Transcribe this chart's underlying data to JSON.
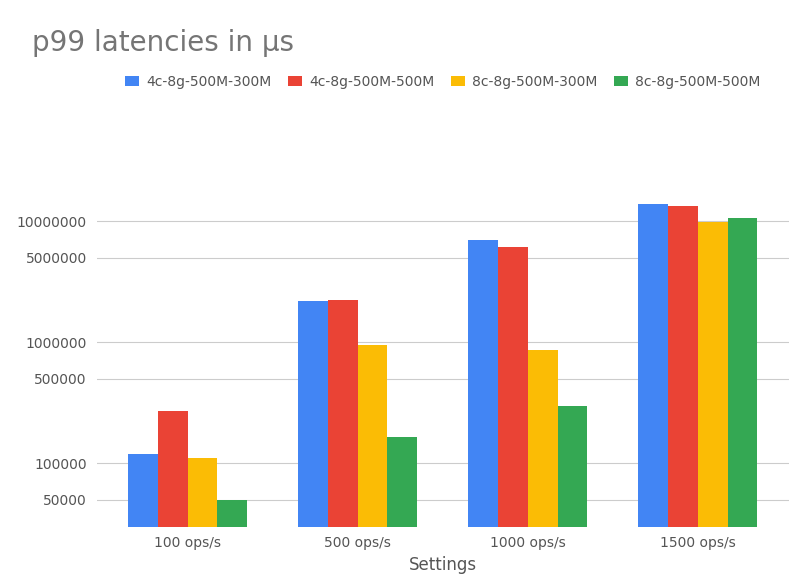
{
  "title": "p99 latencies in μs",
  "xlabel": "Settings",
  "ylabel": "",
  "categories": [
    "100 ops/s",
    "500 ops/s",
    "1000 ops/s",
    "1500 ops/s"
  ],
  "series": [
    {
      "label": "4c-8g-500M-300M",
      "color": "#4285F4",
      "values": [
        120000,
        2200000,
        7000000,
        14000000
      ]
    },
    {
      "label": "4c-8g-500M-500M",
      "color": "#EA4335",
      "values": [
        270000,
        2250000,
        6200000,
        13500000
      ]
    },
    {
      "label": "8c-8g-500M-300M",
      "color": "#FBBC05",
      "values": [
        110000,
        950000,
        860000,
        9900000
      ]
    },
    {
      "label": "8c-8g-500M-500M",
      "color": "#34A853",
      "values": [
        50000,
        165000,
        300000,
        10700000
      ]
    }
  ],
  "background_color": "#ffffff",
  "grid_color": "#cccccc",
  "title_color": "#757575",
  "label_color": "#555555",
  "tick_color": "#555555",
  "yticks": [
    50000,
    100000,
    500000,
    1000000,
    5000000,
    10000000
  ],
  "ylim_log": [
    30000,
    30000000
  ],
  "title_fontsize": 20,
  "tick_fontsize": 10,
  "xlabel_fontsize": 12
}
